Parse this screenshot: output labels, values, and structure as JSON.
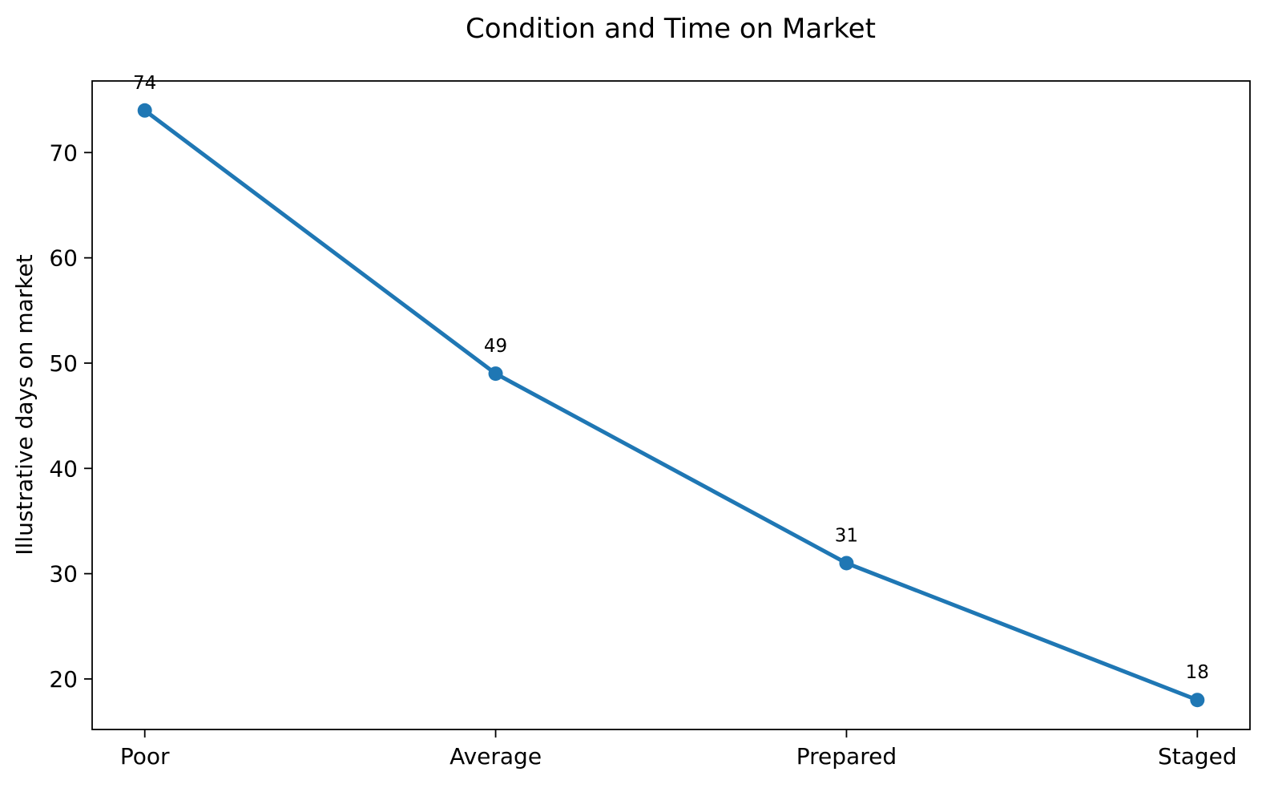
{
  "figure": {
    "background": "#ffffff",
    "text_color": "#000000",
    "spine_color": "#000000"
  },
  "chart_data": {
    "type": "line",
    "title": "Condition and Time on Market",
    "xlabel": "",
    "ylabel": "Illustrative days on market",
    "categories": [
      "Poor",
      "Average",
      "Prepared",
      "Staged"
    ],
    "series": [
      {
        "name": "Illustrative days on market",
        "values": [
          74,
          49,
          31,
          18
        ],
        "point_labels": [
          "74",
          "49",
          "31",
          "18"
        ],
        "color": "#1f77b4",
        "marker": "circle"
      }
    ],
    "yticks": [
      20,
      30,
      40,
      50,
      60,
      70
    ],
    "ylim": [
      15.2,
      76.8
    ],
    "grid": false,
    "legend_position": "none"
  }
}
